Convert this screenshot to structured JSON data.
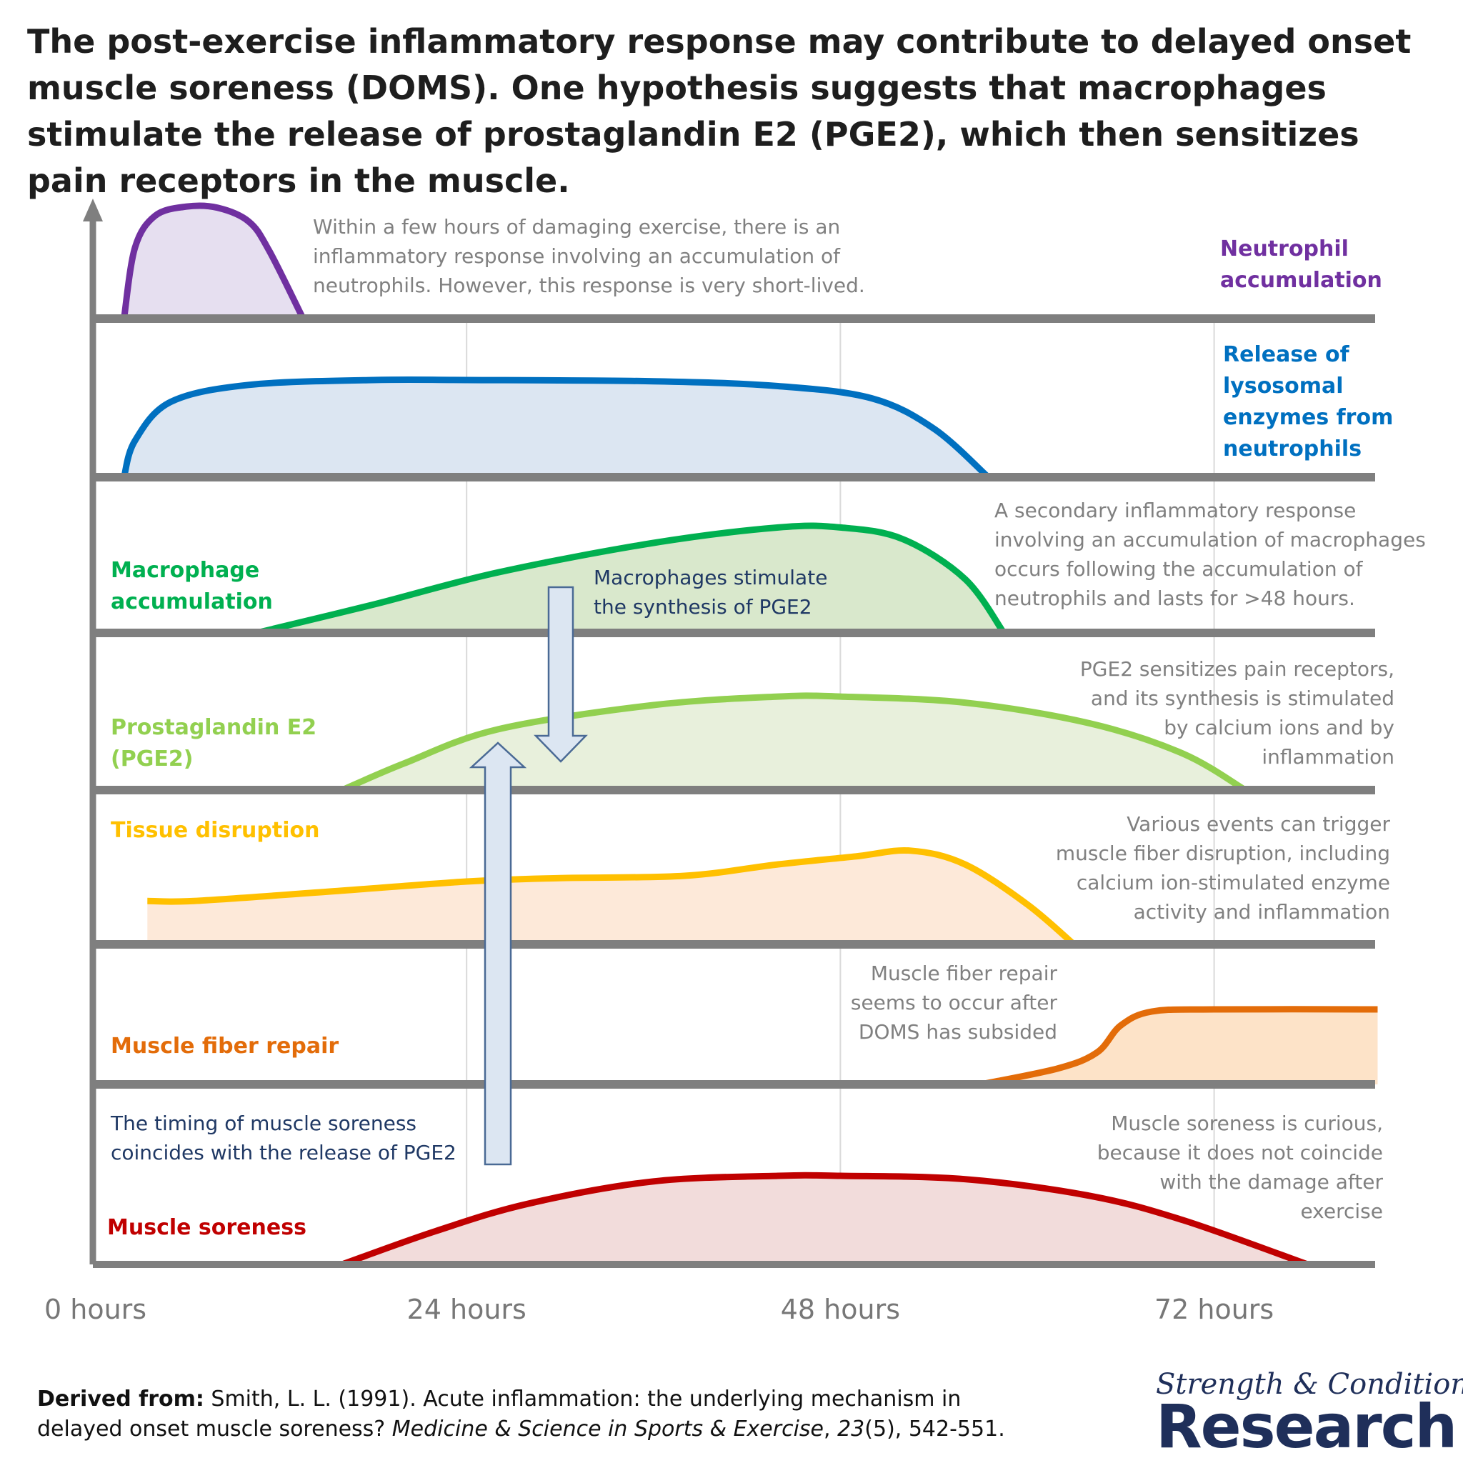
{
  "title": "The post-exercise inflammatory response may contribute to delayed onset muscle soreness (DOMS). One hypothesis suggests that macrophages stimulate the release of prostaglandin E2 (PGE2), which then sensitizes pain receptors in the muscle.",
  "x_axis": {
    "ticks": [
      "0 hours",
      "24 hours",
      "48 hours",
      "72 hours"
    ],
    "tick_hours": [
      0,
      24,
      48,
      72
    ]
  },
  "rows": [
    {
      "key": "neutrophil",
      "label_lines": [
        "Neutrophil",
        "accumulation"
      ],
      "color": "#7030a0",
      "fill": "#e6dff0",
      "curve_hours": [
        2,
        2.7,
        4,
        6,
        8,
        10,
        11.3,
        13.5
      ],
      "curve_level": [
        0,
        0.62,
        0.9,
        0.98,
        0.97,
        0.85,
        0.6,
        0
      ]
    },
    {
      "key": "lysosomal",
      "label_lines": [
        "Release of",
        "lysosomal",
        "enzymes from",
        "neutrophils"
      ],
      "color": "#0070c0",
      "fill": "#dce6f2",
      "curve_hours": [
        2,
        2.7,
        5,
        10,
        18,
        24,
        36,
        44,
        50,
        54,
        57.5
      ],
      "curve_level": [
        0,
        0.3,
        0.62,
        0.76,
        0.8,
        0.8,
        0.79,
        0.75,
        0.65,
        0.4,
        0
      ]
    },
    {
      "key": "macrophage",
      "label_lines": [
        "Macrophage",
        "accumulation"
      ],
      "color": "#00b050",
      "fill": "#d9e8cc",
      "curve_hours": [
        10.5,
        18,
        26,
        36,
        44,
        48,
        52,
        56,
        58.5
      ],
      "curve_level": [
        0,
        0.22,
        0.47,
        0.7,
        0.82,
        0.82,
        0.73,
        0.42,
        0
      ]
    },
    {
      "key": "pge2",
      "label_lines": [
        "Prostaglandin E2",
        "(PGE2)"
      ],
      "color": "#92d050",
      "fill": "#e8f0dc",
      "curve_hours": [
        16,
        20,
        26,
        36,
        44,
        48,
        56,
        64,
        70,
        74
      ],
      "curve_level": [
        0,
        0.22,
        0.5,
        0.7,
        0.77,
        0.77,
        0.72,
        0.55,
        0.3,
        0
      ]
    },
    {
      "key": "tissue",
      "label_lines": [
        "Tissue disruption"
      ],
      "color": "#ffc000",
      "fill": "#fde9d9",
      "curve_hours": [
        3.5,
        6.5,
        15,
        24,
        30,
        38,
        44,
        49,
        52.5,
        56,
        60,
        63
      ],
      "curve_level": [
        0.38,
        0.38,
        0.46,
        0.55,
        0.58,
        0.6,
        0.7,
        0.77,
        0.82,
        0.7,
        0.35,
        0
      ]
    },
    {
      "key": "repair",
      "label_lines": [
        "Muscle fiber repair"
      ],
      "color": "#e36c09",
      "fill": "#fde3c8",
      "curve_hours": [
        57,
        62,
        64.5,
        66,
        68,
        72,
        82.5
      ],
      "curve_level": [
        0,
        0.15,
        0.3,
        0.55,
        0.68,
        0.7,
        0.7
      ]
    },
    {
      "key": "soreness",
      "label_lines": [
        "Muscle soreness"
      ],
      "color": "#c00000",
      "fill": "#f2dcdb",
      "curve_hours": [
        16,
        22,
        28,
        36,
        44,
        48,
        56,
        64,
        70,
        78
      ],
      "curve_level": [
        0,
        0.3,
        0.55,
        0.75,
        0.8,
        0.8,
        0.77,
        0.62,
        0.4,
        0
      ]
    }
  ],
  "annotations": {
    "neutrophil_note": [
      "Within a few hours of damaging exercise, there is an",
      "inflammatory response involving an accumulation of",
      "neutrophils. However, this response is very short-lived."
    ],
    "macrophage_note": [
      "A secondary inflammatory response",
      "involving an accumulation of macrophages",
      "occurs following the accumulation of",
      "neutrophils and lasts for >48 hours."
    ],
    "macrophage_pge2": [
      "Macrophages stimulate",
      "the synthesis of PGE2"
    ],
    "pge2_note": [
      "PGE2 sensitizes pain receptors,",
      "and its synthesis is stimulated",
      "by calcium ions and by",
      "inflammation"
    ],
    "tissue_note": [
      "Various events can trigger",
      "muscle fiber disruption, including",
      "calcium ion-stimulated enzyme",
      "activity and inflammation"
    ],
    "repair_note": [
      "Muscle fiber repair",
      "seems to occur after",
      "DOMS has subsided"
    ],
    "timing_note": [
      "The timing of muscle soreness",
      "coincides with the release of PGE2"
    ],
    "soreness_note": [
      "Muscle soreness is curious,",
      "because it does not coincide",
      "with the damage after",
      "exercise"
    ]
  },
  "citation": {
    "prefix": "Derived from:",
    "text_before": " Smith, L. L. (1991). Acute inflammation: the underlying mechanism in delayed onset muscle soreness? ",
    "journal": "Medicine & Science in Sports & Exercise",
    "text_mid": ", ",
    "volume": "23",
    "text_after": "(5), 542-551."
  },
  "brand": {
    "script": "Strength & Conditioning",
    "main": "Research"
  },
  "colors": {
    "axis": "#7f7f7f",
    "grid": "#d9d9d9",
    "arrow_fill": "#dce6f2",
    "arrow_stroke": "#4a6a95"
  }
}
